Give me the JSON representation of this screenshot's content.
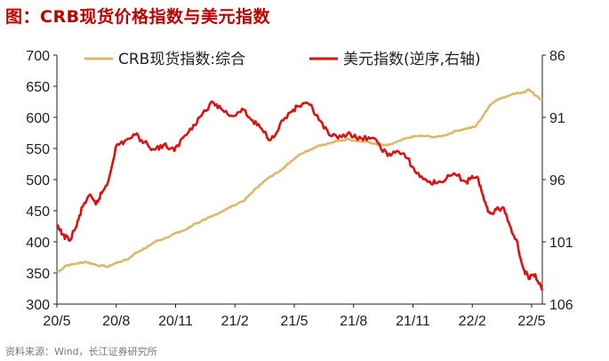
{
  "title": "图：CRB现货价格指数与美元指数",
  "source": "资料来源：Wind，长江证券研究所",
  "colors": {
    "crb": "#dcb86a",
    "usd": "#dd1111",
    "title": "#c00000"
  },
  "chart_data": {
    "type": "line",
    "x_ticks": [
      "20/5",
      "20/8",
      "20/11",
      "21/2",
      "21/5",
      "21/8",
      "21/11",
      "22/2",
      "22/5"
    ],
    "x_range": [
      "2020-05-01",
      "2022-05-31"
    ],
    "left_axis": {
      "ticks": [
        "700",
        "650",
        "600",
        "550",
        "500",
        "450",
        "400",
        "350",
        "300"
      ],
      "range": [
        300,
        700
      ]
    },
    "right_axis": {
      "ticks": [
        "86",
        "91",
        "96",
        "101",
        "106"
      ],
      "range": [
        86,
        106
      ],
      "reversed": true
    },
    "legend": "top",
    "series": [
      {
        "name": "CRB现货指数:综合",
        "axis": "left",
        "points": [
          [
            "2020-05-01",
            350
          ],
          [
            "2020-05-15",
            362
          ],
          [
            "2020-06-01",
            365
          ],
          [
            "2020-06-15",
            368
          ],
          [
            "2020-07-01",
            363
          ],
          [
            "2020-07-20",
            360
          ],
          [
            "2020-08-01",
            366
          ],
          [
            "2020-08-20",
            372
          ],
          [
            "2020-09-01",
            382
          ],
          [
            "2020-09-20",
            392
          ],
          [
            "2020-10-01",
            400
          ],
          [
            "2020-10-20",
            407
          ],
          [
            "2020-11-01",
            413
          ],
          [
            "2020-11-20",
            420
          ],
          [
            "2020-12-01",
            428
          ],
          [
            "2020-12-20",
            436
          ],
          [
            "2021-01-01",
            442
          ],
          [
            "2021-01-20",
            452
          ],
          [
            "2021-02-01",
            458
          ],
          [
            "2021-02-20",
            468
          ],
          [
            "2021-03-01",
            478
          ],
          [
            "2021-03-15",
            492
          ],
          [
            "2021-04-01",
            505
          ],
          [
            "2021-04-20",
            518
          ],
          [
            "2021-05-01",
            528
          ],
          [
            "2021-05-15",
            540
          ],
          [
            "2021-06-01",
            548
          ],
          [
            "2021-06-15",
            555
          ],
          [
            "2021-07-01",
            558
          ],
          [
            "2021-07-15",
            562
          ],
          [
            "2021-08-01",
            565
          ],
          [
            "2021-08-15",
            562
          ],
          [
            "2021-09-01",
            560
          ],
          [
            "2021-09-15",
            556
          ],
          [
            "2021-10-01",
            555
          ],
          [
            "2021-10-15",
            560
          ],
          [
            "2021-11-01",
            567
          ],
          [
            "2021-11-15",
            570
          ],
          [
            "2021-12-01",
            570
          ],
          [
            "2021-12-15",
            568
          ],
          [
            "2022-01-01",
            572
          ],
          [
            "2022-01-15",
            578
          ],
          [
            "2022-02-01",
            582
          ],
          [
            "2022-02-15",
            585
          ],
          [
            "2022-03-01",
            605
          ],
          [
            "2022-03-10",
            620
          ],
          [
            "2022-03-20",
            628
          ],
          [
            "2022-04-01",
            632
          ],
          [
            "2022-04-15",
            638
          ],
          [
            "2022-05-01",
            640
          ],
          [
            "2022-05-10",
            645
          ],
          [
            "2022-05-20",
            635
          ],
          [
            "2022-05-31",
            628
          ]
        ]
      },
      {
        "name": "美元指数(逆序,右轴)",
        "axis": "right",
        "points": [
          [
            "2020-05-01",
            99.8
          ],
          [
            "2020-05-10",
            100.4
          ],
          [
            "2020-05-20",
            100.9
          ],
          [
            "2020-06-01",
            99.7
          ],
          [
            "2020-06-10",
            98.2
          ],
          [
            "2020-06-20",
            97.3
          ],
          [
            "2020-07-01",
            98.0
          ],
          [
            "2020-07-10",
            97.1
          ],
          [
            "2020-07-20",
            96.2
          ],
          [
            "2020-08-01",
            93.4
          ],
          [
            "2020-08-15",
            92.9
          ],
          [
            "2020-09-01",
            92.4
          ],
          [
            "2020-09-15",
            93.0
          ],
          [
            "2020-10-01",
            93.6
          ],
          [
            "2020-10-15",
            93.2
          ],
          [
            "2020-11-01",
            93.7
          ],
          [
            "2020-11-15",
            92.6
          ],
          [
            "2020-12-01",
            91.6
          ],
          [
            "2020-12-15",
            90.7
          ],
          [
            "2021-01-01",
            89.8
          ],
          [
            "2021-01-15",
            90.4
          ],
          [
            "2021-02-01",
            90.9
          ],
          [
            "2021-02-15",
            90.3
          ],
          [
            "2021-03-01",
            91.2
          ],
          [
            "2021-03-15",
            91.8
          ],
          [
            "2021-04-01",
            92.8
          ],
          [
            "2021-04-15",
            91.6
          ],
          [
            "2021-05-01",
            90.6
          ],
          [
            "2021-05-15",
            90.1
          ],
          [
            "2021-06-01",
            90.0
          ],
          [
            "2021-06-15",
            91.2
          ],
          [
            "2021-07-01",
            92.4
          ],
          [
            "2021-07-15",
            92.7
          ],
          [
            "2021-08-01",
            92.2
          ],
          [
            "2021-08-15",
            92.8
          ],
          [
            "2021-09-01",
            92.6
          ],
          [
            "2021-09-15",
            93.0
          ],
          [
            "2021-10-01",
            94.1
          ],
          [
            "2021-10-15",
            93.7
          ],
          [
            "2021-11-01",
            94.3
          ],
          [
            "2021-11-15",
            95.5
          ],
          [
            "2021-12-01",
            96.1
          ],
          [
            "2021-12-15",
            96.3
          ],
          [
            "2022-01-01",
            95.9
          ],
          [
            "2022-01-15",
            95.6
          ],
          [
            "2022-02-01",
            96.2
          ],
          [
            "2022-02-10",
            95.7
          ],
          [
            "2022-02-20",
            96.0
          ],
          [
            "2022-03-01",
            97.7
          ],
          [
            "2022-03-10",
            98.7
          ],
          [
            "2022-03-20",
            98.4
          ],
          [
            "2022-04-01",
            98.3
          ],
          [
            "2022-04-10",
            99.7
          ],
          [
            "2022-04-20",
            100.8
          ],
          [
            "2022-05-01",
            103.1
          ],
          [
            "2022-05-10",
            104.0
          ],
          [
            "2022-05-20",
            103.6
          ],
          [
            "2022-05-31",
            104.9
          ]
        ]
      }
    ]
  }
}
